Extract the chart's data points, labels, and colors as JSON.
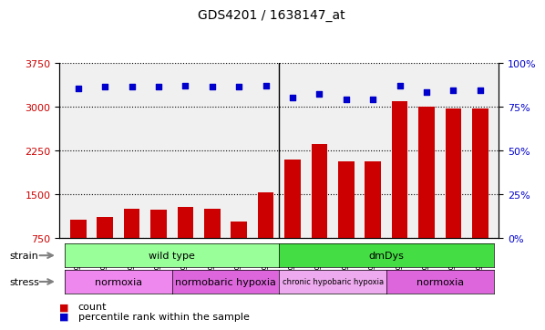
{
  "title": "GDS4201 / 1638147_at",
  "samples": [
    "GSM398839",
    "GSM398840",
    "GSM398841",
    "GSM398842",
    "GSM398835",
    "GSM398836",
    "GSM398837",
    "GSM398838",
    "GSM398827",
    "GSM398828",
    "GSM398829",
    "GSM398830",
    "GSM398831",
    "GSM398832",
    "GSM398833",
    "GSM398834"
  ],
  "counts": [
    1050,
    1100,
    1250,
    1230,
    1280,
    1250,
    1020,
    1530,
    2080,
    2350,
    2050,
    2050,
    3080,
    3000,
    2970,
    2970
  ],
  "percentile_ranks": [
    85,
    86,
    86,
    86,
    87,
    86,
    86,
    87,
    80,
    82,
    79,
    79,
    87,
    83,
    84,
    84
  ],
  "bar_color": "#cc0000",
  "dot_color": "#0000cc",
  "ylim_left": [
    750,
    3750
  ],
  "ylim_right": [
    0,
    100
  ],
  "yticks_left": [
    750,
    1500,
    2250,
    3000,
    3750
  ],
  "yticks_right": [
    0,
    25,
    50,
    75,
    100
  ],
  "strain_groups": [
    {
      "label": "wild type",
      "start": 0,
      "end": 8,
      "color": "#99ff99"
    },
    {
      "label": "dmDys",
      "start": 8,
      "end": 16,
      "color": "#44dd44"
    }
  ],
  "stress_groups": [
    {
      "label": "normoxia",
      "start": 0,
      "end": 4,
      "color": "#ee88ee"
    },
    {
      "label": "normobaric hypoxia",
      "start": 4,
      "end": 8,
      "color": "#dd66dd"
    },
    {
      "label": "chronic hypobaric hypoxia",
      "start": 8,
      "end": 12,
      "color": "#eeaaee"
    },
    {
      "label": "normoxia",
      "start": 12,
      "end": 16,
      "color": "#dd66dd"
    }
  ]
}
